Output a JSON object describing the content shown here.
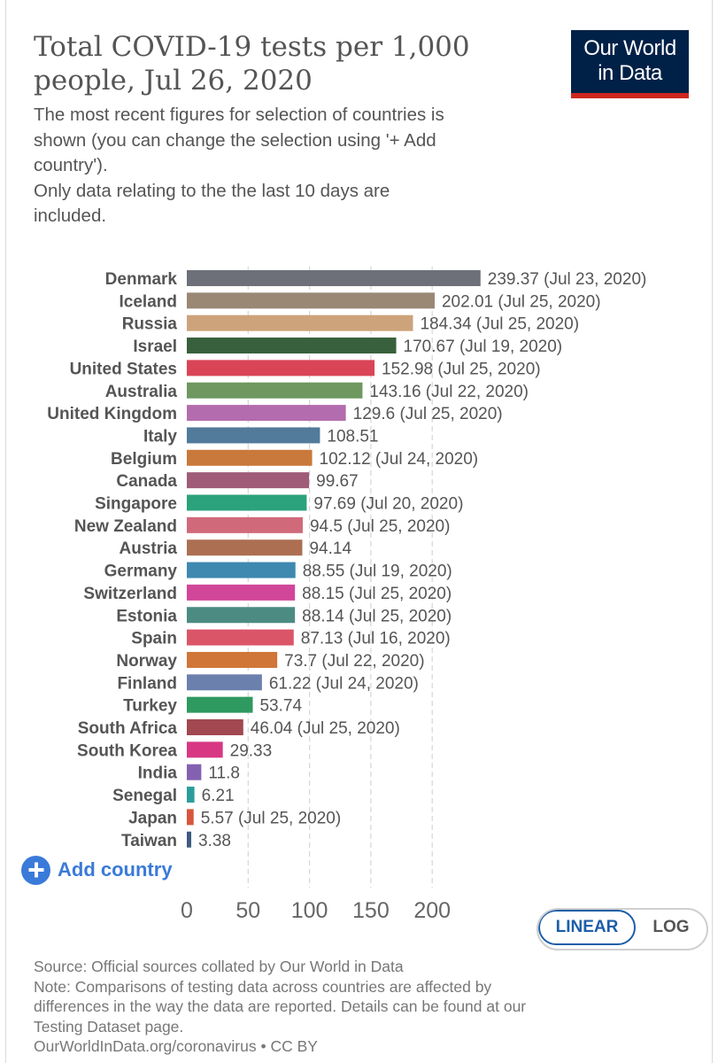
{
  "header": {
    "title_line1": "Total COVID-19 tests per 1,000",
    "title_line2": "people, Jul 26, 2020",
    "subtitle": "The most recent figures for selection of countries is\nshown (you can change the selection using '+ Add\ncountry').\nOnly data relating to the the last 10 days are\nincluded.",
    "logo_line1": "Our World",
    "logo_line2": "in Data",
    "logo_bg": "#002147",
    "logo_accent": "#ce261e"
  },
  "controls": {
    "add_country_label": "Add country",
    "add_icon": "plus-circle-icon",
    "scale_linear": "LINEAR",
    "scale_log": "LOG",
    "selected_scale": "LINEAR"
  },
  "footer": {
    "source": "Source: Official sources collated by Our World in Data",
    "note_line1": "Note: Comparisons of testing data across countries are affected by",
    "note_line2": "differences in the way the data are reported. Details can be found at our",
    "note_line3": "Testing Dataset page.",
    "credit": "OurWorldInData.org/coronavirus • CC BY"
  },
  "chart_data": {
    "type": "bar",
    "orientation": "horizontal",
    "grid": true,
    "xlim": [
      0,
      240
    ],
    "x_ticks": [
      0,
      50,
      100,
      150,
      200
    ],
    "categories": [
      "Denmark",
      "Iceland",
      "Russia",
      "Israel",
      "United States",
      "Australia",
      "United Kingdom",
      "Italy",
      "Belgium",
      "Canada",
      "Singapore",
      "New Zealand",
      "Austria",
      "Germany",
      "Switzerland",
      "Estonia",
      "Spain",
      "Norway",
      "Finland",
      "Turkey",
      "South Africa",
      "South Korea",
      "India",
      "Senegal",
      "Japan",
      "Taiwan"
    ],
    "values": [
      239.37,
      202.01,
      184.34,
      170.67,
      152.98,
      143.16,
      129.6,
      108.51,
      102.12,
      99.67,
      97.69,
      94.5,
      94.14,
      88.55,
      88.15,
      88.14,
      87.13,
      73.7,
      61.22,
      53.74,
      46.04,
      29.33,
      11.8,
      6.21,
      5.57,
      3.38
    ],
    "value_labels": [
      "239.37",
      "202.01",
      "184.34",
      "170.67",
      "152.98",
      "143.16",
      "129.6",
      "108.51",
      "102.12",
      "99.67",
      "97.69",
      "94.5",
      "94.14",
      "88.55",
      "88.15",
      "88.14",
      "87.13",
      "73.7",
      "61.22",
      "53.74",
      "46.04",
      "29.33",
      "11.8",
      "6.21",
      "5.57",
      "3.38"
    ],
    "date_labels": [
      "(Jul 23, 2020)",
      "(Jul 25, 2020)",
      "(Jul 25, 2020)",
      "(Jul 19, 2020)",
      "(Jul 25, 2020)",
      "(Jul 22, 2020)",
      "(Jul 25, 2020)",
      "",
      "(Jul 24, 2020)",
      "",
      "(Jul 20, 2020)",
      "(Jul 25, 2020)",
      "",
      "(Jul 19, 2020)",
      "(Jul 25, 2020)",
      "(Jul 25, 2020)",
      "(Jul 16, 2020)",
      "(Jul 22, 2020)",
      "(Jul 24, 2020)",
      "",
      "(Jul 25, 2020)",
      "",
      "",
      "",
      "(Jul 25, 2020)",
      ""
    ],
    "colors": [
      "#6d7078",
      "#9a8774",
      "#cda37b",
      "#38603c",
      "#da4457",
      "#6e9860",
      "#b36cad",
      "#517a9b",
      "#c9793b",
      "#9f5b78",
      "#2ba27c",
      "#d06a7b",
      "#ac6f52",
      "#3f88b0",
      "#d2469a",
      "#4b8b82",
      "#db5569",
      "#cf7638",
      "#6b80ad",
      "#2e9a5f",
      "#a14850",
      "#d83883",
      "#8461b0",
      "#2b9e9b",
      "#d9553b",
      "#3e5b80"
    ]
  }
}
